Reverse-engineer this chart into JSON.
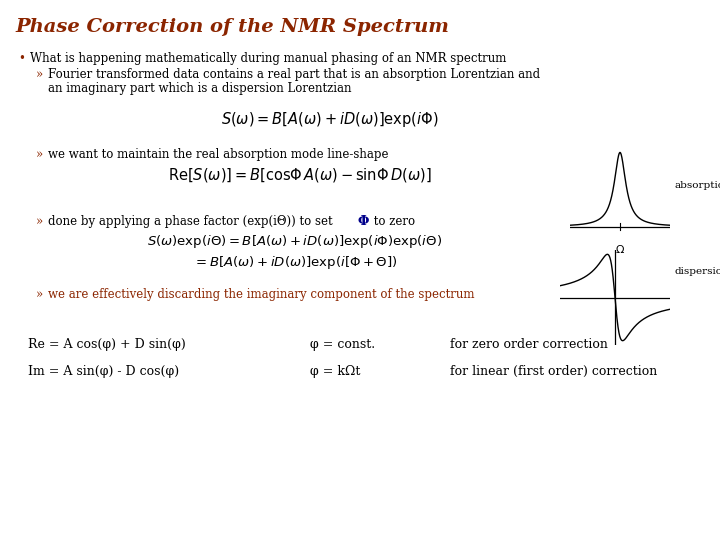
{
  "title": "Phase Correction of the NMR Spectrum",
  "title_color": "#8B2500",
  "title_fontsize": 14,
  "bg_color": "#FFFFFF",
  "bullet_color": "#8B2500",
  "text_color_dark": "#000000",
  "text_color_red": "#8B2500",
  "bullet1": "What is happening mathematically during manual phasing of an NMR spectrum",
  "sub1_line1": "Fourier transformed data contains a real part that is an absorption Lorentzian and",
  "sub1_line2": "an imaginary part which is a dispersion Lorentzian",
  "eq1": "$S(\\omega) = B[A(\\omega) + iD(\\omega)]\\mathrm{exp}(i\\Phi)$",
  "sub2": "we want to maintain the real absorption mode line-shape",
  "eq2": "$\\mathrm{Re}[S(\\omega)] = B[\\mathrm{cos}\\Phi\\, A(\\omega) - \\mathrm{sin}\\Phi\\, D(\\omega)]$",
  "sub3_pre": "done by applying a phase factor (exp(i",
  "sub3_theta": "Θ",
  "sub3_post": ")) to set ",
  "sub3_phi": "Φ",
  "sub3_end": " to zero",
  "eq3a": "$S(\\omega)\\mathrm{exp}(i\\Theta) = B[A(\\omega) + iD(\\omega)]\\mathrm{exp}(i\\Phi)\\mathrm{exp}(i\\Theta)$",
  "eq3b": "$= B[A(\\omega) + iD(\\omega)]\\mathrm{exp}(i[\\Phi + \\Theta])$",
  "sub4": "we are effectively discarding the imaginary component of the spectrum",
  "bottom1a": "Re = A cos(φ) + D sin(φ)",
  "bottom1b": "φ = const.",
  "bottom1c": "for zero order correction",
  "bottom2a": "Im = A sin(φ) - D cos(φ)",
  "bottom2b": "φ = kΩt",
  "bottom2c": "for linear (first order) correction",
  "arrow_color": "#8B2500",
  "font_text": 8.5,
  "font_eq": 10.5
}
